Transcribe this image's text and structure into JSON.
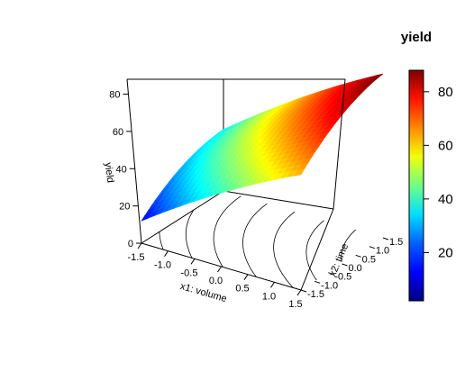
{
  "chart_data": {
    "type": "surface3d",
    "z_label": "yield",
    "x_label": "x1: volume",
    "y_label": "x2: time",
    "x_range": [
      -1.5,
      1.5
    ],
    "y_range": [
      -1.5,
      1.5
    ],
    "z_range": [
      0,
      88
    ],
    "x_ticks": [
      "-1.5",
      "-1.0",
      "-0.5",
      "0.0",
      "0.5",
      "1.0",
      "1.5"
    ],
    "y_ticks": [
      "-1.5",
      "-1.0",
      "-0.5",
      "0.0",
      "0.5",
      "1.0",
      "1.5"
    ],
    "z_ticks": [
      "0",
      "20",
      "40",
      "60",
      "80"
    ],
    "surface_corners": {
      "x1=-1.5,x2=-1.5": 12,
      "x1=-1.5,x2=1.5": 33,
      "x1=1.5,x2=-1.5": 62,
      "x1=1.5,x2=1.5": 88
    },
    "colorbar": {
      "title": "yield",
      "range": [
        2,
        88
      ],
      "ticks": [
        "20",
        "40",
        "60",
        "80"
      ],
      "palette": "jet"
    },
    "contours_on_floor": true,
    "grid": false
  }
}
